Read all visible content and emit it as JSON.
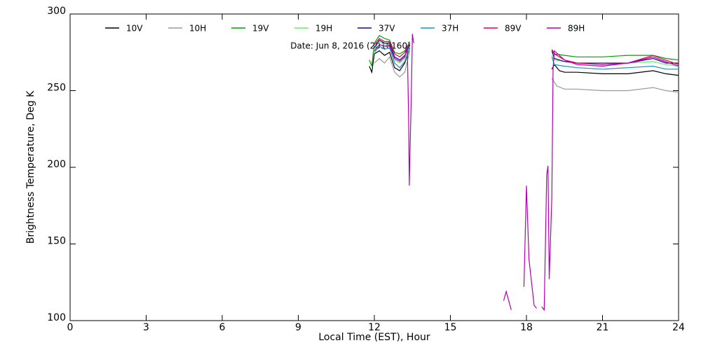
{
  "chart_data": {
    "type": "line",
    "annotation": "Date: Jun  8, 2016 (2016160)",
    "x_label": "Local Time (EST), Hour",
    "y_label": "Brightness Temperature, Deg  K",
    "xlim": [
      0,
      24
    ],
    "xticks": [
      0,
      3,
      6,
      9,
      12,
      15,
      18,
      21,
      24
    ],
    "ylim": [
      100,
      300
    ],
    "yticks": [
      100,
      150,
      200,
      250,
      300
    ],
    "series": [
      {
        "name": "10V",
        "color": "#000000",
        "x": [
          11.8,
          11.9,
          12.0,
          12.2,
          12.4,
          12.6,
          12.8,
          13.0,
          13.2,
          13.4,
          null,
          19.0,
          19.1,
          19.3,
          19.5,
          20,
          21,
          22,
          23,
          23.5,
          24
        ],
        "values": [
          266,
          262,
          274,
          276,
          273,
          275,
          265,
          263,
          268,
          278,
          null,
          264,
          267,
          263,
          262,
          262,
          261,
          261,
          263,
          261,
          260
        ]
      },
      {
        "name": "10H",
        "color": "#999999",
        "x": [
          12.0,
          12.2,
          12.4,
          12.6,
          12.8,
          13.0,
          13.2,
          13.4,
          null,
          19.0,
          19.2,
          19.5,
          20,
          21,
          22,
          23,
          23.5,
          24
        ],
        "values": [
          268,
          271,
          268,
          272,
          262,
          259,
          262,
          276,
          null,
          258,
          253,
          251,
          251,
          250,
          250,
          252,
          250,
          249
        ]
      },
      {
        "name": "19V",
        "color": "#00a000",
        "x": [
          11.8,
          11.9,
          12.0,
          12.2,
          12.4,
          12.6,
          12.8,
          13.0,
          13.2,
          13.4,
          null,
          19.0,
          19.1,
          19.5,
          20,
          21,
          22,
          23,
          23.5,
          24
        ],
        "values": [
          270,
          266,
          281,
          286,
          284,
          283,
          275,
          274,
          276,
          282,
          null,
          276,
          274,
          273,
          272,
          272,
          273,
          273,
          271,
          270
        ]
      },
      {
        "name": "19H",
        "color": "#66ee66",
        "x": [
          12.0,
          12.2,
          12.4,
          12.6,
          12.8,
          13.0,
          13.2,
          13.4,
          null,
          19.0,
          19.1,
          19.5,
          20,
          21,
          22,
          23,
          23.5,
          24
        ],
        "values": [
          277,
          282,
          280,
          279,
          270,
          268,
          271,
          279,
          null,
          273,
          270,
          269,
          268,
          267,
          268,
          269,
          267,
          266
        ]
      },
      {
        "name": "37V",
        "color": "#2a0099",
        "x": [
          12.0,
          12.2,
          12.4,
          12.6,
          12.8,
          13.0,
          13.2,
          13.4,
          null,
          19.0,
          19.1,
          19.5,
          20,
          21,
          22,
          23,
          23.5,
          24
        ],
        "values": [
          278,
          283,
          281,
          281,
          272,
          270,
          273,
          280,
          null,
          276,
          271,
          269,
          268,
          268,
          268,
          271,
          268,
          268
        ]
      },
      {
        "name": "37H",
        "color": "#1e90c8",
        "x": [
          12.0,
          12.2,
          12.4,
          12.6,
          12.8,
          13.0,
          13.2,
          13.4,
          null,
          19.0,
          19.1,
          19.5,
          20,
          21,
          22,
          23,
          23.5,
          24
        ],
        "values": [
          275,
          279,
          277,
          278,
          268,
          265,
          269,
          278,
          null,
          272,
          267,
          266,
          265,
          264,
          265,
          266,
          264,
          264
        ]
      },
      {
        "name": "89V",
        "color": "#e0004a",
        "x": [
          12.0,
          12.2,
          12.4,
          12.6,
          12.8,
          13.0,
          13.2,
          13.4,
          null,
          19.0,
          19.1,
          19.5,
          20,
          21,
          22,
          23,
          23.3,
          24
        ],
        "values": [
          280,
          284,
          282,
          282,
          274,
          272,
          275,
          281,
          null,
          277,
          274,
          270,
          268,
          267,
          268,
          273,
          271,
          267
        ]
      },
      {
        "name": "89H",
        "color": "#b000b0",
        "x": [
          12.0,
          12.2,
          12.4,
          12.6,
          12.8,
          13.0,
          13.2,
          13.3,
          13.35,
          13.38,
          13.4,
          13.45,
          13.5,
          13.55,
          null,
          17.1,
          17.2,
          17.4,
          null,
          17.9,
          18.0,
          18.1,
          18.3,
          18.4,
          null,
          18.6,
          18.7,
          18.8,
          18.85,
          18.9,
          19.0,
          19.05,
          19.1,
          19.5,
          20,
          21,
          22,
          23,
          23.3,
          24
        ],
        "values": [
          276,
          280,
          279,
          279,
          271,
          269,
          272,
          279,
          235,
          188,
          205,
          240,
          287,
          281,
          null,
          113,
          119,
          107,
          null,
          122,
          188,
          140,
          110,
          108,
          null,
          109,
          107,
          195,
          201,
          127,
          180,
          265,
          276,
          270,
          267,
          266,
          268,
          272,
          270,
          266
        ]
      }
    ]
  }
}
